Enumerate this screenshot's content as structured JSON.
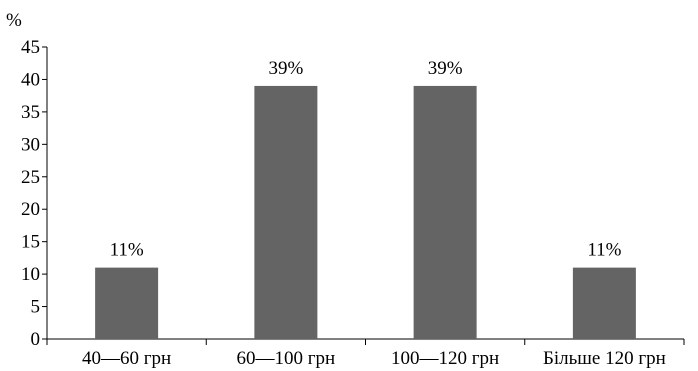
{
  "chart_data": {
    "type": "bar",
    "categories": [
      "40—60 грн",
      "60—100 грн",
      "100—120 грн",
      "Більше 120 грн"
    ],
    "values": [
      11,
      39,
      39,
      11
    ],
    "data_labels": [
      "11%",
      "39%",
      "39%",
      "11%"
    ],
    "title": "",
    "xlabel": "",
    "ylabel": "%",
    "ylim": [
      0,
      45
    ],
    "yticks": [
      0,
      5,
      10,
      15,
      20,
      25,
      30,
      35,
      40,
      45
    ],
    "grid": false,
    "legend": "none",
    "bar_color": "#646464"
  }
}
